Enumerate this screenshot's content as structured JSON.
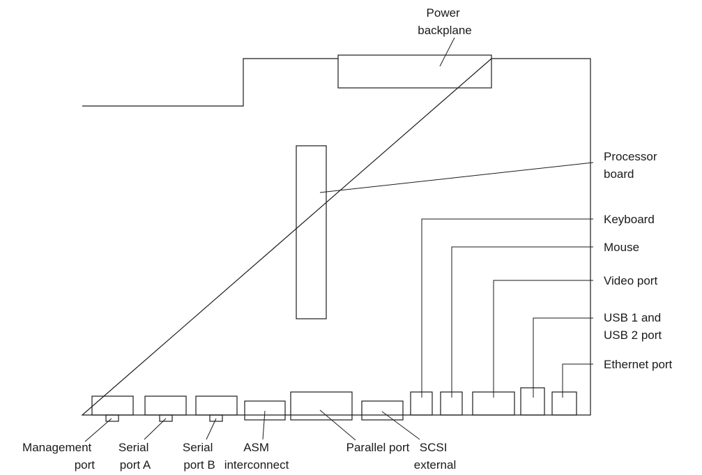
{
  "labels": {
    "power_backplane": [
      "Power",
      "backplane"
    ],
    "processor_board": [
      "Processor",
      "board"
    ],
    "keyboard": [
      "Keyboard"
    ],
    "mouse": [
      "Mouse"
    ],
    "video_port": [
      "Video port"
    ],
    "usb_port": [
      "USB 1 and",
      "USB 2 port"
    ],
    "ethernet_port": [
      "Ethernet port"
    ],
    "management_port": [
      "Management",
      "port"
    ],
    "serial_port_a": [
      "Serial",
      "port A"
    ],
    "serial_port_b": [
      "Serial",
      "port B"
    ],
    "asm_interconnect": [
      "ASM",
      "interconnect"
    ],
    "parallel_port": [
      "Parallel port"
    ],
    "scsi_external": [
      "SCSI",
      "external"
    ]
  }
}
